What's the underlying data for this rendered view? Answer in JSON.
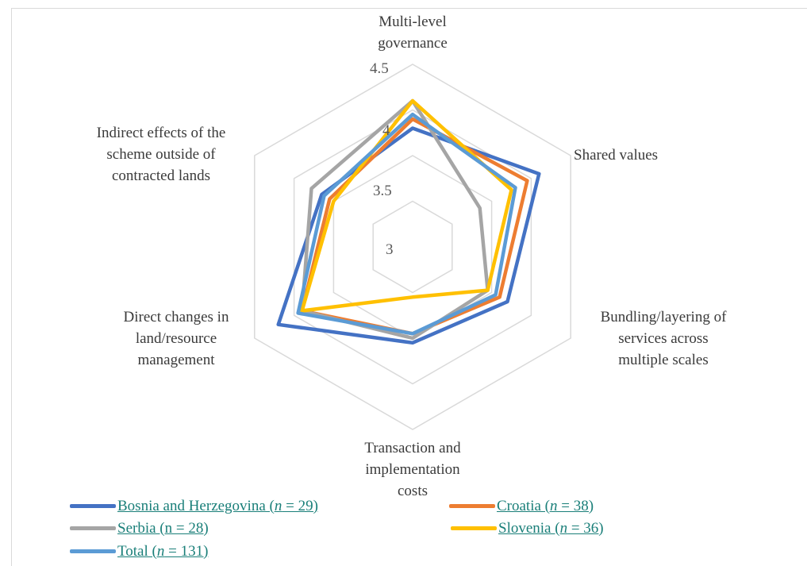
{
  "chart_data": {
    "type": "radar",
    "axes": [
      "Multi-level governance",
      "Shared values",
      "Bundling/layering of services across multiple scales",
      "Transaction and implementation costs",
      "Direct changes in land/resource management",
      "Indirect effects of the scheme outside of contracted lands"
    ],
    "axis_label_lines": [
      [
        "Multi-level",
        "governance"
      ],
      [
        "Shared values"
      ],
      [
        "Bundling/layering of",
        "services across",
        "multiple scales"
      ],
      [
        "Transaction and",
        "implementation",
        "costs"
      ],
      [
        "Direct changes in",
        "land/resource",
        "management"
      ],
      [
        "Indirect effects of the",
        "scheme outside of",
        "contracted lands"
      ]
    ],
    "rmin": 2.5,
    "rmax": 4.5,
    "ticks": [
      3,
      3.5,
      4,
      4.5
    ],
    "tick_labels": [
      "3",
      "3.5",
      "4",
      "4.5"
    ],
    "grid": true,
    "legend_position": "bottom",
    "series": [
      {
        "name": "Bosnia and Herzegovina (n = 29)",
        "name_parts": [
          "Bosnia and Herzegovina (",
          "n",
          " = 29)"
        ],
        "color": "#4472C4",
        "values": [
          3.8,
          4.1,
          3.7,
          3.55,
          4.2,
          3.65
        ]
      },
      {
        "name": "Croatia (n = 38)",
        "name_parts": [
          "Croatia (",
          "n",
          " = 38)"
        ],
        "color": "#ED7D31",
        "values": [
          3.9,
          3.95,
          3.6,
          3.45,
          3.9,
          3.55
        ]
      },
      {
        "name": "Serbia (n = 28)",
        "name_parts": [
          "Serbia (n = 28)"
        ],
        "color": "#A5A5A5",
        "values": [
          4.1,
          3.35,
          3.45,
          3.5,
          3.9,
          3.78
        ]
      },
      {
        "name": "Slovenia (n = 36)",
        "name_parts": [
          "Slovenia (",
          "n",
          " = 36)"
        ],
        "color": "#FFC000",
        "values": [
          4.1,
          3.75,
          3.45,
          3.05,
          3.9,
          3.5
        ]
      },
      {
        "name": "Total (n = 131)",
        "name_parts": [
          "Total (",
          "n",
          " = 131)"
        ],
        "color": "#5B9BD5",
        "values": [
          3.95,
          3.8,
          3.55,
          3.45,
          3.95,
          3.62
        ]
      }
    ]
  }
}
